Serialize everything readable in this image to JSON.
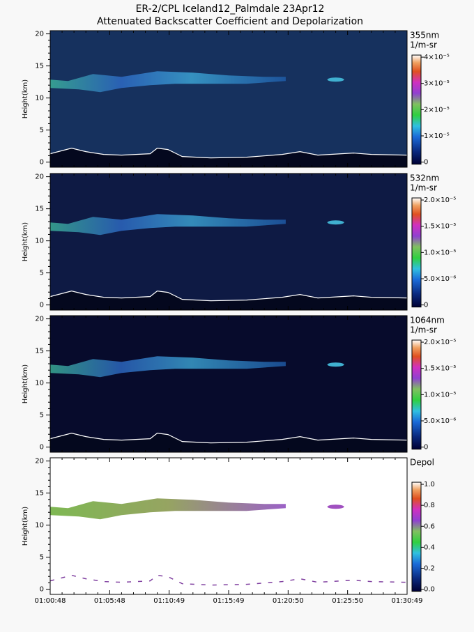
{
  "title": [
    "ER-2/CPL Iceland12_Palmdale 23Apr12",
    "Attenuated Backscatter Coefficient and Depolarization"
  ],
  "x_tick_labels": [
    "01:00:48",
    "01:05:48",
    "01:10:49",
    "01:15:49",
    "01:20:50",
    "01:25:50",
    "01:30:49"
  ],
  "chart_data": [
    {
      "type": "heatmap",
      "ylabel": "Height(km)",
      "ylim": [
        -0.8,
        20.5
      ],
      "yticks": [
        0,
        5,
        10,
        15,
        20
      ],
      "colorbar": {
        "label": [
          "355nm",
          "1/m-sr"
        ],
        "lim": [
          0,
          4e-05
        ],
        "ticks": [
          0,
          {
            "value": 1e-05,
            "label": "1×10⁻⁵"
          },
          {
            "value": 2e-05,
            "label": "2×10⁻⁵"
          },
          {
            "value": 3e-05,
            "label": "3×10⁻⁵"
          },
          {
            "value": 4e-05,
            "label": "4×10⁻⁵"
          }
        ]
      }
    },
    {
      "type": "heatmap",
      "ylabel": "Height(km)",
      "ylim": [
        -0.8,
        20.5
      ],
      "yticks": [
        0,
        5,
        10,
        15,
        20
      ],
      "colorbar": {
        "label": [
          "532nm",
          "1/m-sr"
        ],
        "lim": [
          0,
          2e-05
        ],
        "ticks": [
          0,
          {
            "value": 5e-06,
            "label": "5.0×10⁻⁶"
          },
          {
            "value": 1e-05,
            "label": "1.0×10⁻⁵"
          },
          {
            "value": 1.5e-05,
            "label": "1.5×10⁻⁵"
          },
          {
            "value": 2e-05,
            "label": "2.0×10⁻⁵"
          }
        ]
      }
    },
    {
      "type": "heatmap",
      "ylabel": "Height(km)",
      "ylim": [
        -0.8,
        20.5
      ],
      "yticks": [
        0,
        5,
        10,
        15,
        20
      ],
      "colorbar": {
        "label": [
          "1064nm",
          "1/m-sr"
        ],
        "lim": [
          0,
          2e-05
        ],
        "ticks": [
          0,
          {
            "value": 5e-06,
            "label": "5.0×10⁻⁶"
          },
          {
            "value": 1e-05,
            "label": "1.0×10⁻⁵"
          },
          {
            "value": 1.5e-05,
            "label": "1.5×10⁻⁵"
          },
          {
            "value": 2e-05,
            "label": "2.0×10⁻⁵"
          }
        ]
      }
    },
    {
      "type": "heatmap",
      "ylabel": "Height(km)",
      "ylim": [
        -0.8,
        20.5
      ],
      "yticks": [
        0,
        5,
        10,
        15,
        20
      ],
      "colorbar": {
        "label": [
          "Depol"
        ],
        "lim": [
          0,
          1
        ],
        "ticks": [
          {
            "value": 0,
            "label": "0.0"
          },
          {
            "value": 0.2,
            "label": "0.2"
          },
          {
            "value": 0.4,
            "label": "0.4"
          },
          {
            "value": 0.6,
            "label": "0.6"
          },
          {
            "value": 0.8,
            "label": "0.8"
          },
          {
            "value": 1,
            "label": "1.0"
          }
        ]
      }
    }
  ]
}
